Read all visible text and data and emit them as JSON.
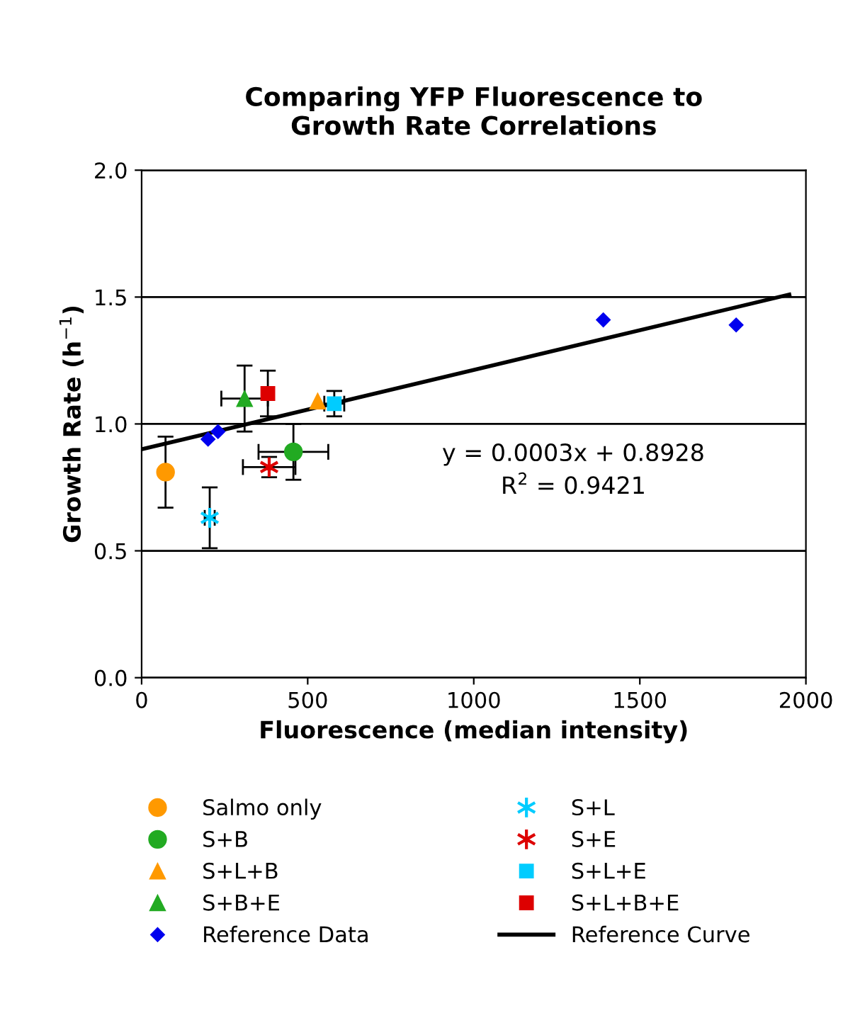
{
  "chart_data": {
    "type": "scatter",
    "title": "Comparing YFP Fluorescence to\nGrowth Rate Correlations",
    "xlabel": "Fluorescence (median intensity)",
    "ylabel": "Growth Rate (h$^{−1}$)",
    "xlim": [
      0,
      2000
    ],
    "xticks": [
      0,
      500,
      1000,
      1500,
      2000
    ],
    "ylim": [
      0.0,
      2.0
    ],
    "yticks": [
      {
        "value": 0.0,
        "label": "0.0"
      },
      {
        "value": 0.5,
        "label": "0.5"
      },
      {
        "value": 1.0,
        "label": "1.0"
      },
      {
        "value": 1.5,
        "label": "1.5"
      },
      {
        "value": 2.0,
        "label": "2.0"
      }
    ],
    "grid": "y",
    "legend": "bottom",
    "annotations": [
      "y = 0.0003x + 0.8928",
      "R$^{2}$ = 0.9421"
    ],
    "series": [
      {
        "name": "Salmo only",
        "color": "#ff9900",
        "marker": "circle",
        "x": [
          72
        ],
        "values": [
          0.81
        ],
        "errors": [
          0.14
        ]
      },
      {
        "name": "S+B",
        "color": "#22aa22",
        "marker": "circle",
        "x": [
          457
        ],
        "values": [
          0.89
        ],
        "errors": [
          0.11
        ],
        "xerrors": [
          105
        ]
      },
      {
        "name": "S+L+B",
        "color": "#ff9900",
        "marker": "triangle",
        "x": [
          530
        ],
        "values": [
          1.09
        ]
      },
      {
        "name": "S+B+E",
        "color": "#22aa22",
        "marker": "triangle",
        "x": [
          310
        ],
        "values": [
          1.1
        ],
        "errors": [
          0.13
        ],
        "xerrors": [
          70
        ]
      },
      {
        "name": "Reference Data",
        "color": "#0000ee",
        "marker": "diamond",
        "x": [
          200,
          230,
          1390,
          1790
        ],
        "values": [
          0.94,
          0.97,
          1.41,
          1.39
        ]
      },
      {
        "name": "S+L",
        "color": "#00ccff",
        "marker": "cross",
        "x": [
          205
        ],
        "values": [
          0.63
        ],
        "errors": [
          0.12
        ],
        "xerrors": [
          15
        ]
      },
      {
        "name": "S+E",
        "color": "#dd0000",
        "marker": "cross",
        "x": [
          384
        ],
        "values": [
          0.83
        ],
        "errors": [
          0.04
        ],
        "xerrors": [
          79
        ]
      },
      {
        "name": "S+L+E",
        "color": "#00ccff",
        "marker": "square",
        "x": [
          580
        ],
        "values": [
          1.08
        ],
        "errors": [
          0.05
        ],
        "xerrors": [
          30
        ]
      },
      {
        "name": "S+L+B+E",
        "color": "#dd0000",
        "marker": "square",
        "x": [
          380
        ],
        "values": [
          1.12
        ],
        "errors": [
          0.09
        ]
      },
      {
        "name": "Reference Curve",
        "type": "line",
        "color": "#000000",
        "marker": "none",
        "x": [
          0,
          1950
        ],
        "values": [
          0.9,
          1.51
        ]
      }
    ]
  }
}
